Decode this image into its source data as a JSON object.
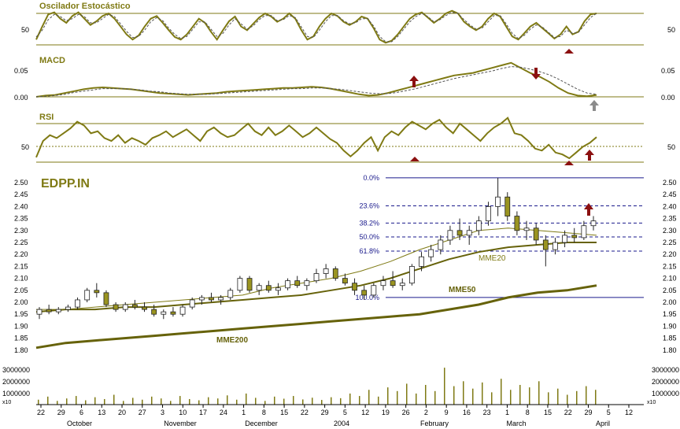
{
  "colors": {
    "olive": "#7f7a14",
    "olive_dark": "#66620a",
    "fib_blue": "#1a1a8c",
    "arrow_red": "#8b1010",
    "arrow_gray": "#8c8c8c",
    "candle_fill": "#9a9420"
  },
  "icons": {
    "up_arrow": "up-arrow-icon",
    "down_arrow": "down-arrow-icon",
    "gray_arrow": "gray-up-arrow-icon"
  },
  "panels": {
    "stochastic": {
      "title": "Oscilador Estocástico",
      "tick_label": "50"
    },
    "macd": {
      "title": "MACD",
      "tick_top": "0.05",
      "tick_bottom": "0.00"
    },
    "rsi": {
      "title": "RSI",
      "tick_label": "50"
    },
    "price": {
      "ticker": "EDPP.IN"
    },
    "volume": {
      "ticks": [
        "3000000",
        "2000000",
        "1000000"
      ],
      "left_unit": "x10",
      "right_unit": "x10"
    }
  },
  "x_axis": {
    "day_labels": [
      "22",
      "29",
      "6",
      "13",
      "20",
      "27",
      "3",
      "10",
      "17",
      "24",
      "1",
      "8",
      "15",
      "22",
      "29",
      "5",
      "12",
      "19",
      "26",
      "2",
      "9",
      "16",
      "23",
      "1",
      "8",
      "15",
      "22",
      "29",
      "5",
      "12"
    ],
    "month_labels": [
      "October",
      "November",
      "December",
      "2004",
      "February",
      "March",
      "April"
    ]
  },
  "chart_data": [
    {
      "type": "line",
      "name": "stochastic",
      "title": "Oscilador Estocástico",
      "x_range": [
        "2003-09-22",
        "2004-04-12"
      ],
      "reference_lines": [
        20,
        80
      ],
      "tick_labels": [
        "50"
      ],
      "series": [
        {
          "style": "solid",
          "values": [
            30,
            55,
            78,
            82,
            70,
            62,
            75,
            82,
            70,
            58,
            65,
            75,
            80,
            70,
            55,
            40,
            30,
            38,
            55,
            70,
            75,
            62,
            48,
            35,
            30,
            40,
            55,
            70,
            62,
            45,
            30,
            48,
            65,
            74,
            55,
            48,
            60,
            72,
            80,
            74,
            64,
            70,
            80,
            70,
            48,
            30,
            36,
            55,
            70,
            80,
            75,
            64,
            58,
            64,
            74,
            70,
            52,
            30,
            24,
            28,
            40,
            55,
            70,
            78,
            82,
            72,
            62,
            70,
            80,
            85,
            80,
            64,
            55,
            48,
            55,
            70,
            80,
            74,
            55,
            36,
            30,
            42,
            55,
            62,
            52,
            42,
            32,
            40,
            55,
            40,
            45,
            65,
            78,
            80
          ]
        },
        {
          "style": "dashed",
          "values": [
            35,
            48,
            68,
            78,
            74,
            66,
            70,
            78,
            74,
            62,
            62,
            70,
            78,
            74,
            60,
            46,
            34,
            36,
            48,
            64,
            72,
            66,
            52,
            40,
            32,
            36,
            50,
            64,
            64,
            50,
            36,
            42,
            58,
            70,
            60,
            50,
            56,
            68,
            76,
            76,
            66,
            68,
            76,
            72,
            54,
            36,
            34,
            48,
            64,
            76,
            76,
            66,
            60,
            62,
            70,
            70,
            56,
            36,
            26,
            26,
            36,
            50,
            64,
            74,
            80,
            74,
            64,
            68,
            76,
            82,
            80,
            68,
            58,
            50,
            52,
            64,
            76,
            76,
            60,
            42,
            32,
            38,
            50,
            58,
            54,
            44,
            34,
            36,
            48,
            42,
            44,
            58,
            72,
            80
          ]
        }
      ]
    },
    {
      "type": "line",
      "name": "macd",
      "title": "MACD",
      "x_range": [
        "2003-09-22",
        "2004-04-12"
      ],
      "ylim": [
        0.0,
        0.06
      ],
      "tick_labels": [
        "0.05",
        "0.00"
      ],
      "series": [
        {
          "style": "solid",
          "values": [
            0.0,
            0.002,
            0.003,
            0.006,
            0.009,
            0.012,
            0.014,
            0.015,
            0.014,
            0.013,
            0.012,
            0.01,
            0.008,
            0.006,
            0.005,
            0.004,
            0.003,
            0.004,
            0.005,
            0.006,
            0.008,
            0.009,
            0.01,
            0.011,
            0.012,
            0.013,
            0.014,
            0.014,
            0.015,
            0.016,
            0.015,
            0.013,
            0.01,
            0.007,
            0.004,
            0.002,
            0.003,
            0.006,
            0.01,
            0.014,
            0.018,
            0.022,
            0.026,
            0.03,
            0.034,
            0.036,
            0.038,
            0.042,
            0.046,
            0.05,
            0.054,
            0.046,
            0.038,
            0.032,
            0.024,
            0.014,
            0.006,
            0.002,
            0.001,
            0.003
          ]
        },
        {
          "style": "dashed",
          "values": [
            0.0,
            0.001,
            0.002,
            0.004,
            0.007,
            0.009,
            0.011,
            0.013,
            0.013,
            0.013,
            0.012,
            0.011,
            0.009,
            0.008,
            0.006,
            0.005,
            0.004,
            0.004,
            0.004,
            0.005,
            0.006,
            0.007,
            0.008,
            0.009,
            0.01,
            0.011,
            0.012,
            0.013,
            0.013,
            0.014,
            0.014,
            0.013,
            0.012,
            0.01,
            0.008,
            0.006,
            0.005,
            0.005,
            0.007,
            0.01,
            0.013,
            0.017,
            0.021,
            0.025,
            0.029,
            0.032,
            0.035,
            0.038,
            0.041,
            0.045,
            0.048,
            0.047,
            0.044,
            0.04,
            0.035,
            0.028,
            0.02,
            0.012,
            0.006,
            0.004
          ]
        }
      ]
    },
    {
      "type": "line",
      "name": "rsi",
      "title": "RSI",
      "x_range": [
        "2003-09-22",
        "2004-04-12"
      ],
      "ylim": [
        20,
        80
      ],
      "reference_lines": [
        30,
        50,
        70
      ],
      "tick_labels": [
        "50"
      ],
      "series": [
        {
          "style": "solid",
          "values": [
            35,
            52,
            58,
            55,
            60,
            65,
            72,
            68,
            60,
            62,
            55,
            52,
            58,
            50,
            55,
            52,
            48,
            55,
            58,
            62,
            56,
            60,
            64,
            58,
            52,
            62,
            66,
            60,
            56,
            58,
            64,
            70,
            62,
            58,
            66,
            58,
            62,
            68,
            62,
            56,
            60,
            66,
            60,
            54,
            50,
            42,
            36,
            42,
            50,
            56,
            42,
            56,
            62,
            58,
            66,
            72,
            68,
            64,
            70,
            74,
            66,
            60,
            70,
            64,
            58,
            52,
            60,
            66,
            70,
            76,
            60,
            58,
            52,
            44,
            42,
            48,
            40,
            38,
            34,
            40,
            46,
            50,
            56
          ]
        }
      ]
    },
    {
      "type": "candlestick",
      "name": "price",
      "title": "EDPP.IN",
      "x_range": [
        "2003-09-22",
        "2004-04-12"
      ],
      "ylim": [
        1.75,
        2.55
      ],
      "y_ticks": [
        "2.50",
        "2.45",
        "2.40",
        "2.35",
        "2.30",
        "2.25",
        "2.20",
        "2.15",
        "2.10",
        "2.05",
        "2.00",
        "1.95",
        "1.90",
        "1.85",
        "1.80"
      ],
      "ohlc": [
        [
          1.95,
          1.98,
          1.93,
          1.97
        ],
        [
          1.97,
          1.99,
          1.95,
          1.96
        ],
        [
          1.96,
          1.98,
          1.95,
          1.97
        ],
        [
          1.97,
          1.99,
          1.96,
          1.98
        ],
        [
          1.98,
          2.02,
          1.97,
          2.01
        ],
        [
          2.01,
          2.06,
          2.0,
          2.05
        ],
        [
          2.05,
          2.08,
          2.02,
          2.04
        ],
        [
          2.04,
          2.05,
          1.98,
          1.99
        ],
        [
          1.99,
          2.0,
          1.96,
          1.97
        ],
        [
          1.97,
          2.0,
          1.96,
          1.99
        ],
        [
          1.99,
          2.01,
          1.97,
          1.98
        ],
        [
          1.98,
          2.0,
          1.96,
          1.97
        ],
        [
          1.97,
          1.99,
          1.94,
          1.95
        ],
        [
          1.95,
          1.97,
          1.93,
          1.96
        ],
        [
          1.96,
          1.98,
          1.94,
          1.95
        ],
        [
          1.95,
          1.99,
          1.94,
          1.98
        ],
        [
          1.98,
          2.02,
          1.97,
          2.01
        ],
        [
          2.01,
          2.03,
          1.99,
          2.02
        ],
        [
          2.02,
          2.04,
          2.0,
          2.01
        ],
        [
          2.01,
          2.03,
          1.99,
          2.02
        ],
        [
          2.02,
          2.06,
          2.01,
          2.05
        ],
        [
          2.05,
          2.11,
          2.04,
          2.1
        ],
        [
          2.1,
          2.11,
          2.04,
          2.05
        ],
        [
          2.05,
          2.08,
          2.03,
          2.07
        ],
        [
          2.07,
          2.09,
          2.04,
          2.05
        ],
        [
          2.05,
          2.08,
          2.03,
          2.06
        ],
        [
          2.06,
          2.1,
          2.05,
          2.09
        ],
        [
          2.09,
          2.11,
          2.06,
          2.07
        ],
        [
          2.07,
          2.1,
          2.05,
          2.09
        ],
        [
          2.09,
          2.14,
          2.08,
          2.12
        ],
        [
          2.12,
          2.16,
          2.1,
          2.14
        ],
        [
          2.14,
          2.15,
          2.09,
          2.1
        ],
        [
          2.1,
          2.12,
          2.07,
          2.08
        ],
        [
          2.08,
          2.1,
          2.03,
          2.05
        ],
        [
          2.05,
          2.07,
          2.01,
          2.03
        ],
        [
          2.03,
          2.08,
          2.02,
          2.07
        ],
        [
          2.07,
          2.11,
          2.05,
          2.09
        ],
        [
          2.09,
          2.13,
          2.06,
          2.07
        ],
        [
          2.07,
          2.1,
          2.05,
          2.08
        ],
        [
          2.08,
          2.16,
          2.07,
          2.15
        ],
        [
          2.15,
          2.21,
          2.13,
          2.19
        ],
        [
          2.19,
          2.24,
          2.17,
          2.22
        ],
        [
          2.22,
          2.28,
          2.2,
          2.26
        ],
        [
          2.26,
          2.32,
          2.24,
          2.3
        ],
        [
          2.3,
          2.35,
          2.26,
          2.28
        ],
        [
          2.28,
          2.32,
          2.24,
          2.3
        ],
        [
          2.3,
          2.36,
          2.28,
          2.34
        ],
        [
          2.34,
          2.42,
          2.32,
          2.4
        ],
        [
          2.4,
          2.52,
          2.36,
          2.44
        ],
        [
          2.44,
          2.46,
          2.34,
          2.36
        ],
        [
          2.36,
          2.38,
          2.28,
          2.3
        ],
        [
          2.3,
          2.34,
          2.26,
          2.31
        ],
        [
          2.31,
          2.33,
          2.24,
          2.26
        ],
        [
          2.26,
          2.28,
          2.15,
          2.22
        ],
        [
          2.22,
          2.27,
          2.2,
          2.25
        ],
        [
          2.25,
          2.3,
          2.23,
          2.28
        ],
        [
          2.28,
          2.31,
          2.25,
          2.27
        ],
        [
          2.27,
          2.34,
          2.26,
          2.32
        ],
        [
          2.32,
          2.36,
          2.3,
          2.34
        ]
      ],
      "moving_averages": [
        {
          "name": "MME20",
          "values": [
            1.97,
            1.97,
            1.98,
            1.99,
            2.0,
            2.01,
            2.02,
            2.03,
            2.06,
            2.08,
            2.1,
            2.13,
            2.17,
            2.22,
            2.26,
            2.3,
            2.31,
            2.3,
            2.29,
            2.28
          ]
        },
        {
          "name": "MME50",
          "values": [
            1.96,
            1.97,
            1.97,
            1.98,
            1.98,
            1.99,
            2.0,
            2.01,
            2.02,
            2.03,
            2.05,
            2.07,
            2.1,
            2.14,
            2.18,
            2.21,
            2.23,
            2.24,
            2.25,
            2.25
          ]
        },
        {
          "name": "MME200",
          "values": [
            1.81,
            1.83,
            1.84,
            1.85,
            1.86,
            1.87,
            1.88,
            1.89,
            1.9,
            1.91,
            1.92,
            1.93,
            1.94,
            1.95,
            1.97,
            1.99,
            2.02,
            2.04,
            2.05,
            2.07
          ]
        }
      ],
      "fibonacci_retracement": {
        "levels": [
          "0.0%",
          "23.6%",
          "38.2%",
          "50.0%",
          "61.8%",
          "100.0%"
        ],
        "values": [
          2.52,
          2.403,
          2.331,
          2.273,
          2.214,
          2.02
        ]
      }
    },
    {
      "type": "bar",
      "name": "volume",
      "x_range": [
        "2003-09-22",
        "2004-04-12"
      ],
      "ylim": [
        0,
        3200000
      ],
      "tick_labels": [
        "3000000",
        "2000000",
        "1000000"
      ],
      "values": [
        400000,
        650000,
        300000,
        500000,
        700000,
        350000,
        600000,
        450000,
        800000,
        300000,
        550000,
        400000,
        650000,
        500000,
        300000,
        700000,
        450000,
        350000,
        600000,
        500000,
        750000,
        400000,
        900000,
        550000,
        300000,
        650000,
        480000,
        700000,
        420000,
        560000,
        380000,
        600000,
        520000,
        900000,
        700000,
        1200000,
        650000,
        1400000,
        1100000,
        1700000,
        900000,
        1600000,
        1100000,
        3000000,
        1500000,
        1900000,
        1300000,
        1800000,
        1000000,
        2100000,
        1200000,
        1600000,
        1400000,
        1900000,
        1000000,
        1300000,
        800000,
        1100000,
        1500000,
        1200000
      ]
    }
  ],
  "annotations": {
    "ma_labels": [
      "MME20",
      "MME50",
      "MME200"
    ]
  }
}
